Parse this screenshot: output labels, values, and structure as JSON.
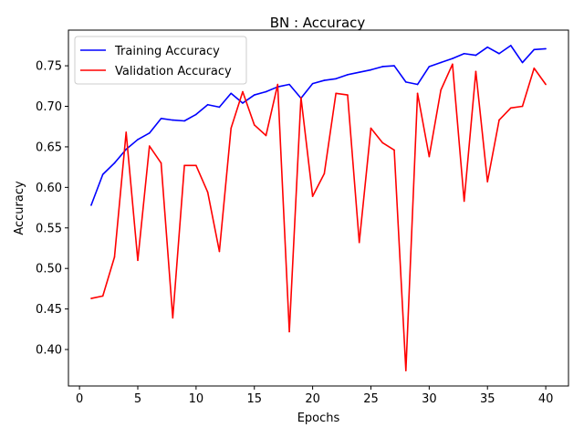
{
  "chart_data": {
    "type": "line",
    "title": "BN : Accuracy",
    "xlabel": "Epochs",
    "ylabel": "Accuracy",
    "xlim": [
      -0.95,
      41.95
    ],
    "ylim": [
      0.355,
      0.794
    ],
    "x_ticks": [
      0,
      5,
      10,
      15,
      20,
      25,
      30,
      35,
      40
    ],
    "y_ticks": [
      0.4,
      0.45,
      0.5,
      0.55,
      0.6,
      0.65,
      0.7,
      0.75
    ],
    "legend_position": "top-left",
    "grid": false,
    "x": [
      1,
      2,
      3,
      4,
      5,
      6,
      7,
      8,
      9,
      10,
      11,
      12,
      13,
      14,
      15,
      16,
      17,
      18,
      19,
      20,
      21,
      22,
      23,
      24,
      25,
      26,
      27,
      28,
      29,
      30,
      31,
      32,
      33,
      34,
      35,
      36,
      37,
      38,
      39,
      40
    ],
    "series": [
      {
        "name": "Training Accuracy",
        "color": "#0000ff",
        "values": [
          0.578,
          0.616,
          0.63,
          0.647,
          0.659,
          0.667,
          0.685,
          0.683,
          0.682,
          0.69,
          0.702,
          0.699,
          0.716,
          0.704,
          0.714,
          0.718,
          0.724,
          0.727,
          0.71,
          0.728,
          0.732,
          0.734,
          0.739,
          0.742,
          0.745,
          0.749,
          0.75,
          0.73,
          0.727,
          0.749,
          0.754,
          0.759,
          0.765,
          0.763,
          0.773,
          0.765,
          0.775,
          0.754,
          0.77,
          0.771
        ]
      },
      {
        "name": "Validation Accuracy",
        "color": "#ff0000",
        "values": [
          0.463,
          0.466,
          0.514,
          0.668,
          0.51,
          0.651,
          0.63,
          0.439,
          0.627,
          0.627,
          0.594,
          0.521,
          0.673,
          0.718,
          0.677,
          0.664,
          0.727,
          0.422,
          0.711,
          0.589,
          0.617,
          0.716,
          0.714,
          0.532,
          0.673,
          0.655,
          0.646,
          0.374,
          0.716,
          0.638,
          0.72,
          0.752,
          0.583,
          0.743,
          0.607,
          0.683,
          0.698,
          0.7,
          0.747,
          0.727
        ]
      }
    ]
  }
}
